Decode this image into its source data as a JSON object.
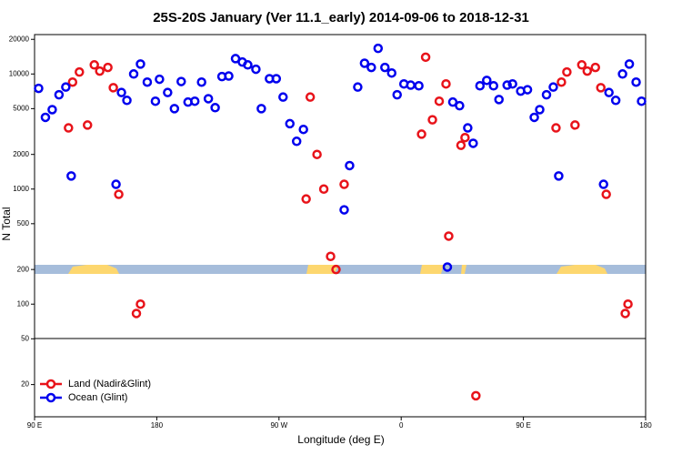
{
  "chart_data": {
    "type": "scatter",
    "title": "25S-20S January (Ver 11.1_early)   2014-09-06 to 2018-12-31",
    "x_label": "Longitude (deg E)",
    "y_label": "N Total",
    "log_scale": true,
    "grid": false,
    "legend": "lower left",
    "xlim": [
      90,
      540
    ],
    "xticks": [
      {
        "value": 90,
        "label": "90 E"
      },
      180,
      {
        "value": 270,
        "label": "90 W"
      },
      {
        "value": 360,
        "label": "0"
      },
      {
        "value": 450,
        "label": "90 E"
      },
      {
        "value": 540,
        "label": "180"
      }
    ],
    "ylim": [
      10.5,
      22000
    ],
    "yticks": [
      20,
      50,
      100,
      200,
      500,
      1000,
      2000,
      5000,
      10000,
      20000
    ],
    "series": [
      {
        "name": "Land (Nadir&Glint)",
        "color": "#e8131a",
        "x": [
          115,
          118,
          123,
          129,
          134,
          138,
          144,
          148,
          152,
          165,
          168,
          290,
          293,
          298,
          303,
          308,
          312,
          318,
          375,
          378,
          383,
          388,
          393,
          395,
          404,
          407,
          415,
          474,
          478,
          482,
          488,
          493,
          497,
          503,
          507,
          511,
          525,
          527
        ],
        "values": [
          3400,
          8500,
          10400,
          3600,
          12000,
          10600,
          11400,
          7600,
          900,
          83,
          100,
          820,
          6300,
          2000,
          1000,
          260,
          200,
          1100,
          3000,
          14000,
          4000,
          5800,
          8200,
          390,
          2400,
          2800,
          16,
          3400,
          8500,
          10400,
          3600,
          12000,
          10600,
          11400,
          7600,
          900,
          83,
          100
        ]
      },
      {
        "name": "Ocean (Glint)",
        "color": "#0000ee",
        "x": [
          93,
          98,
          103,
          108,
          113,
          117,
          150,
          154,
          158,
          163,
          168,
          173,
          179,
          182,
          188,
          193,
          198,
          203,
          208,
          213,
          218,
          223,
          228,
          233,
          238,
          243,
          247,
          253,
          257,
          263,
          268,
          273,
          278,
          283,
          288,
          318,
          322,
          328,
          333,
          338,
          343,
          348,
          353,
          357,
          362,
          367,
          373,
          394,
          398,
          403,
          409,
          413,
          418,
          423,
          428,
          432,
          438,
          442,
          448,
          453,
          458,
          462,
          467,
          472,
          476,
          509,
          513,
          518,
          523,
          528,
          533,
          537
        ],
        "values": [
          7500,
          4200,
          4900,
          6600,
          7700,
          1300,
          1100,
          6900,
          5900,
          10000,
          12200,
          8500,
          5800,
          9000,
          6900,
          5000,
          8600,
          5700,
          5800,
          8500,
          6100,
          5100,
          9500,
          9600,
          13600,
          12700,
          12000,
          11000,
          5000,
          9100,
          9100,
          6300,
          3700,
          2600,
          3300,
          660,
          1600,
          7700,
          12400,
          11400,
          16700,
          11400,
          10200,
          6600,
          8200,
          8000,
          7900,
          210,
          5700,
          5300,
          3400,
          2500,
          7900,
          8800,
          7900,
          6000,
          8000,
          8200,
          7100,
          7300,
          4200,
          4900,
          6600,
          7700,
          1300,
          1100,
          6900,
          5900,
          10000,
          12200,
          8500,
          5800
        ]
      }
    ]
  }
}
